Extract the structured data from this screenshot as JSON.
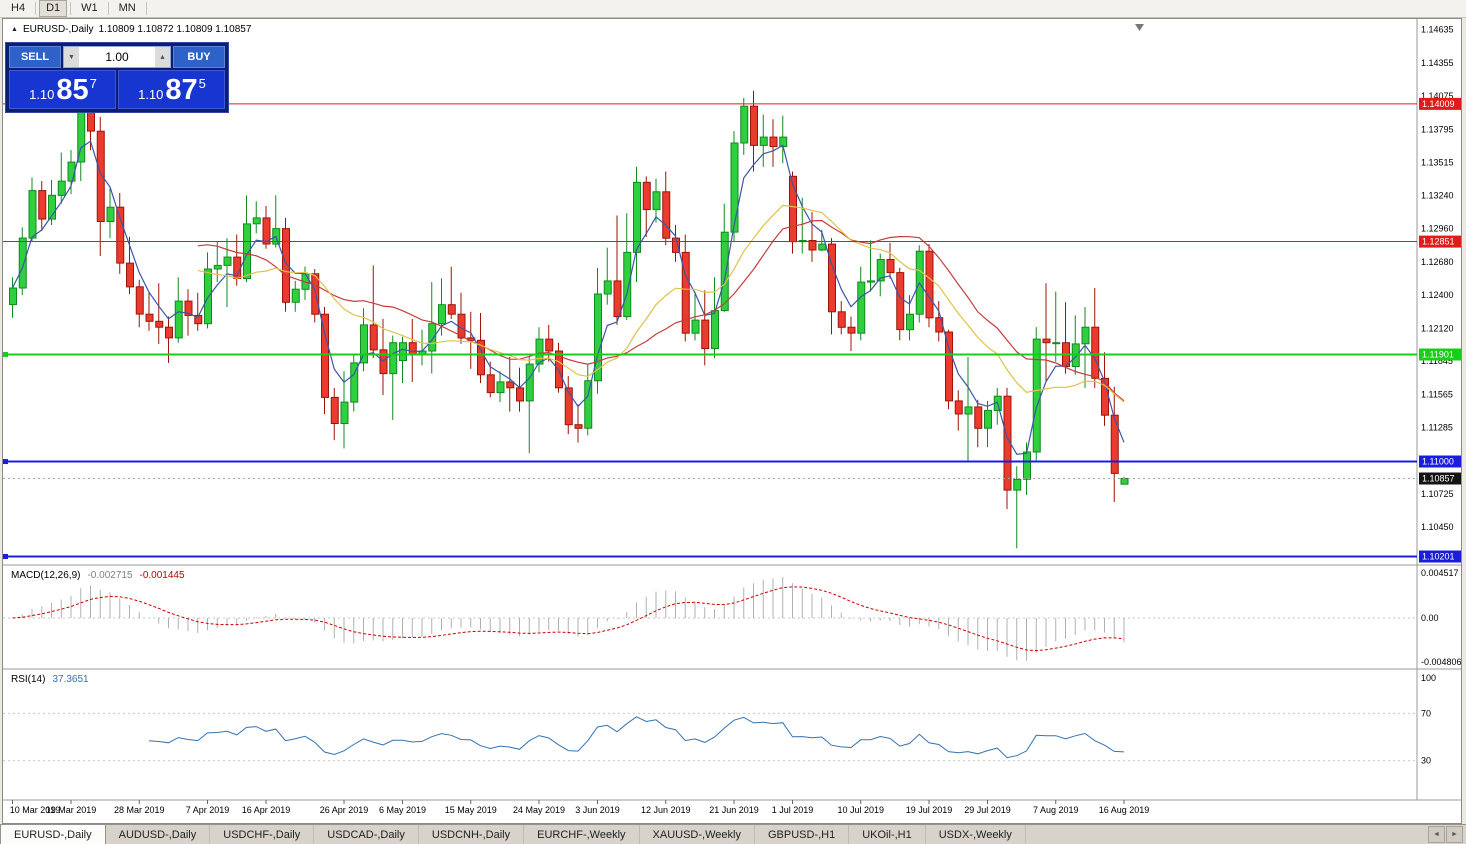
{
  "toolbar": {
    "timeframes": [
      {
        "label": "H4",
        "active": false
      },
      {
        "label": "D1",
        "active": true
      },
      {
        "label": "W1",
        "active": false
      },
      {
        "label": "MN",
        "active": false
      }
    ]
  },
  "icons": {
    "symbol_marker": "▲",
    "spin_down": "▼",
    "spin_up": "▲",
    "tab_left": "◄",
    "tab_right": "►"
  },
  "quote_line": {
    "symbol": "EURUSD-,Daily",
    "values": "1.10809 1.10872 1.10809 1.10857"
  },
  "trade_panel": {
    "sell_label": "SELL",
    "buy_label": "BUY",
    "volume": "1.00",
    "sell": {
      "prefix": "1.10",
      "big": "85",
      "sup": "7"
    },
    "buy": {
      "prefix": "1.10",
      "big": "87",
      "sup": "5"
    }
  },
  "chart_data": {
    "type": "candlestick",
    "symbol": "EURUSD",
    "timeframe": "Daily",
    "ohlc_current": {
      "open": "1.10809",
      "high": "1.10872",
      "low": "1.10809",
      "close": "1.10857"
    },
    "price_range": {
      "top": 1.1469,
      "bottom": 1.1018
    },
    "colors": {
      "bull_fill": "#2fcf3f",
      "bull_border": "#118a1f",
      "bear_fill": "#ea3b2e",
      "bear_border": "#9c1408",
      "macd_hist": "#b0b0b0",
      "macd_signal": "#cc0000",
      "rsi_line": "#3572b0"
    },
    "y_axis_labels": [
      "1.14635",
      "1.14355",
      "1.14075",
      "1.13795",
      "1.13515",
      "1.13240",
      "1.12960",
      "1.12680",
      "1.12400",
      "1.12120",
      "1.11845",
      "1.11565",
      "1.11285",
      "1.10725",
      "1.10450"
    ],
    "hlines": [
      {
        "price": 1.14009,
        "label": "1.14009",
        "color": "#e11b1b",
        "width": 1
      },
      {
        "price": 1.12851,
        "label": "1.12851",
        "color": "#e11b1b",
        "width": 1
      },
      {
        "price": 1.11901,
        "label": "1.11901",
        "color": "#17cf17",
        "width": 2
      },
      {
        "price": 1.11,
        "label": "1.11000",
        "color": "#1c1cdc",
        "width": 2
      },
      {
        "price": 1.10201,
        "label": "1.10201",
        "color": "#1c1cdc",
        "width": 2
      }
    ],
    "current": {
      "price": 1.10857,
      "label": "1.10857",
      "badge_color": "#141414"
    },
    "moving_averages": [
      {
        "period": 4,
        "method": "ema",
        "color": "#3a56a8"
      },
      {
        "period": 20,
        "method": "sma",
        "color": "#c43d3d"
      },
      {
        "period": 20,
        "method": "wma",
        "color": "#e2c14b"
      }
    ],
    "macd": {
      "label": "MACD(12,26,9)",
      "value_main": "-0.002715",
      "value_signal": "-0.001445",
      "axis": [
        "0.004517",
        "0.00",
        "-0.004806"
      ],
      "params": {
        "fast": 12,
        "slow": 26,
        "signal": 9
      }
    },
    "rsi": {
      "label": "RSI(14)",
      "value": "37.3651",
      "period": 14,
      "axis": [
        "100",
        "70",
        "30"
      ],
      "levels": [
        70,
        30
      ]
    },
    "x_labels": [
      {
        "text": "10 Mar 2019",
        "index": 0
      },
      {
        "text": "19 Mar 2019",
        "index": 6
      },
      {
        "text": "28 Mar 2019",
        "index": 13
      },
      {
        "text": "7 Apr 2019",
        "index": 20
      },
      {
        "text": "16 Apr 2019",
        "index": 26
      },
      {
        "text": "26 Apr 2019",
        "index": 34
      },
      {
        "text": "6 May 2019",
        "index": 40
      },
      {
        "text": "15 May 2019",
        "index": 47
      },
      {
        "text": "24 May 2019",
        "index": 54
      },
      {
        "text": "3 Jun 2019",
        "index": 60
      },
      {
        "text": "12 Jun 2019",
        "index": 67
      },
      {
        "text": "21 Jun 2019",
        "index": 74
      },
      {
        "text": "1 Jul 2019",
        "index": 80
      },
      {
        "text": "10 Jul 2019",
        "index": 87
      },
      {
        "text": "19 Jul 2019",
        "index": 94
      },
      {
        "text": "29 Jul 2019",
        "index": 100
      },
      {
        "text": "7 Aug 2019",
        "index": 107
      },
      {
        "text": "16 Aug 2019",
        "index": 114
      }
    ],
    "candles": [
      [
        1.1232,
        1.1255,
        1.1221,
        1.1246
      ],
      [
        1.1246,
        1.1297,
        1.124,
        1.1288
      ],
      [
        1.1288,
        1.1339,
        1.1285,
        1.1328
      ],
      [
        1.1328,
        1.1336,
        1.1294,
        1.1304
      ],
      [
        1.1304,
        1.1337,
        1.1299,
        1.1324
      ],
      [
        1.1324,
        1.136,
        1.1317,
        1.1336
      ],
      [
        1.1336,
        1.1362,
        1.1325,
        1.1352
      ],
      [
        1.1352,
        1.1448,
        1.1336,
        1.1412
      ],
      [
        1.1412,
        1.1438,
        1.1362,
        1.1378
      ],
      [
        1.1378,
        1.139,
        1.1273,
        1.1302
      ],
      [
        1.1302,
        1.133,
        1.1288,
        1.1314
      ],
      [
        1.1314,
        1.1326,
        1.1258,
        1.1267
      ],
      [
        1.1267,
        1.1289,
        1.1241,
        1.1247
      ],
      [
        1.1247,
        1.1253,
        1.1213,
        1.1224
      ],
      [
        1.1224,
        1.1242,
        1.121,
        1.1218
      ],
      [
        1.1218,
        1.125,
        1.1199,
        1.1213
      ],
      [
        1.1213,
        1.1222,
        1.1183,
        1.1204
      ],
      [
        1.1204,
        1.1255,
        1.12,
        1.1235
      ],
      [
        1.1235,
        1.1245,
        1.1206,
        1.1223
      ],
      [
        1.1223,
        1.1242,
        1.121,
        1.1216
      ],
      [
        1.1216,
        1.1276,
        1.1212,
        1.1262
      ],
      [
        1.1262,
        1.1285,
        1.1251,
        1.1265
      ],
      [
        1.1265,
        1.1288,
        1.123,
        1.1272
      ],
      [
        1.1272,
        1.1291,
        1.1248,
        1.1254
      ],
      [
        1.1254,
        1.1324,
        1.1251,
        1.13
      ],
      [
        1.13,
        1.1319,
        1.1292,
        1.1305
      ],
      [
        1.1305,
        1.1315,
        1.1279,
        1.1283
      ],
      [
        1.1283,
        1.1324,
        1.128,
        1.1296
      ],
      [
        1.1296,
        1.1305,
        1.1226,
        1.1234
      ],
      [
        1.1234,
        1.1252,
        1.1226,
        1.1245
      ],
      [
        1.1245,
        1.1264,
        1.1236,
        1.1258
      ],
      [
        1.1258,
        1.1262,
        1.1217,
        1.1224
      ],
      [
        1.1224,
        1.123,
        1.114,
        1.1154
      ],
      [
        1.1154,
        1.1162,
        1.1118,
        1.1132
      ],
      [
        1.1132,
        1.1176,
        1.1111,
        1.115
      ],
      [
        1.115,
        1.119,
        1.1142,
        1.1183
      ],
      [
        1.1183,
        1.1229,
        1.1176,
        1.1215
      ],
      [
        1.1215,
        1.1265,
        1.1187,
        1.1194
      ],
      [
        1.1194,
        1.122,
        1.1156,
        1.1174
      ],
      [
        1.1174,
        1.1206,
        1.1135,
        1.12
      ],
      [
        1.1185,
        1.1205,
        1.1166,
        1.12
      ],
      [
        1.12,
        1.122,
        1.1167,
        1.119
      ],
      [
        1.119,
        1.1211,
        1.1181,
        1.1193
      ],
      [
        1.1193,
        1.1251,
        1.1174,
        1.1216
      ],
      [
        1.1216,
        1.1254,
        1.1206,
        1.1232
      ],
      [
        1.1232,
        1.1264,
        1.122,
        1.1224
      ],
      [
        1.1224,
        1.1242,
        1.1199,
        1.1204
      ],
      [
        1.1204,
        1.1226,
        1.1178,
        1.1202
      ],
      [
        1.1202,
        1.1225,
        1.1166,
        1.1173
      ],
      [
        1.1173,
        1.1184,
        1.1154,
        1.1158
      ],
      [
        1.1158,
        1.1176,
        1.115,
        1.1167
      ],
      [
        1.1167,
        1.1188,
        1.1142,
        1.1162
      ],
      [
        1.1162,
        1.1179,
        1.1142,
        1.1151
      ],
      [
        1.1151,
        1.1188,
        1.1107,
        1.1182
      ],
      [
        1.1182,
        1.1213,
        1.1175,
        1.1203
      ],
      [
        1.1203,
        1.1215,
        1.1184,
        1.1193
      ],
      [
        1.1193,
        1.12,
        1.1158,
        1.1162
      ],
      [
        1.1162,
        1.1172,
        1.1123,
        1.1131
      ],
      [
        1.1131,
        1.1148,
        1.1116,
        1.1128
      ],
      [
        1.1128,
        1.1182,
        1.1122,
        1.1168
      ],
      [
        1.1168,
        1.1263,
        1.1157,
        1.1241
      ],
      [
        1.1241,
        1.128,
        1.1232,
        1.1252
      ],
      [
        1.1252,
        1.1307,
        1.1215,
        1.1222
      ],
      [
        1.1222,
        1.1309,
        1.1219,
        1.1276
      ],
      [
        1.1276,
        1.1348,
        1.1251,
        1.1335
      ],
      [
        1.1335,
        1.134,
        1.1289,
        1.1312
      ],
      [
        1.1312,
        1.1338,
        1.1301,
        1.1327
      ],
      [
        1.1327,
        1.1344,
        1.1282,
        1.1288
      ],
      [
        1.1288,
        1.1299,
        1.1268,
        1.1276
      ],
      [
        1.1276,
        1.1291,
        1.1201,
        1.1208
      ],
      [
        1.1208,
        1.1243,
        1.1202,
        1.1219
      ],
      [
        1.1219,
        1.1244,
        1.1181,
        1.1195
      ],
      [
        1.1195,
        1.1255,
        1.1187,
        1.1227
      ],
      [
        1.1227,
        1.1317,
        1.1226,
        1.1293
      ],
      [
        1.1293,
        1.1378,
        1.1285,
        1.1368
      ],
      [
        1.1368,
        1.1406,
        1.1358,
        1.1399
      ],
      [
        1.1399,
        1.1412,
        1.1344,
        1.1366
      ],
      [
        1.1366,
        1.1392,
        1.1348,
        1.1373
      ],
      [
        1.1373,
        1.1388,
        1.1348,
        1.1365
      ],
      [
        1.1365,
        1.1391,
        1.1351,
        1.1373
      ],
      [
        1.134,
        1.1344,
        1.1275,
        1.1285
      ],
      [
        1.1285,
        1.1322,
        1.1275,
        1.1286
      ],
      [
        1.1286,
        1.131,
        1.1268,
        1.1278
      ],
      [
        1.1278,
        1.1295,
        1.1277,
        1.1283
      ],
      [
        1.1283,
        1.1288,
        1.1207,
        1.1226
      ],
      [
        1.1226,
        1.1235,
        1.1207,
        1.1213
      ],
      [
        1.1213,
        1.1222,
        1.1193,
        1.1208
      ],
      [
        1.1208,
        1.1264,
        1.1202,
        1.1251
      ],
      [
        1.1251,
        1.1286,
        1.1243,
        1.1252
      ],
      [
        1.1252,
        1.1275,
        1.1239,
        1.127
      ],
      [
        1.127,
        1.1284,
        1.1254,
        1.1259
      ],
      [
        1.1259,
        1.1263,
        1.1202,
        1.1211
      ],
      [
        1.1211,
        1.124,
        1.1202,
        1.1224
      ],
      [
        1.1224,
        1.1282,
        1.1217,
        1.1277
      ],
      [
        1.1277,
        1.1283,
        1.1213,
        1.1221
      ],
      [
        1.1221,
        1.1235,
        1.1201,
        1.1209
      ],
      [
        1.1209,
        1.1211,
        1.1144,
        1.1151
      ],
      [
        1.1151,
        1.116,
        1.1126,
        1.114
      ],
      [
        1.114,
        1.1188,
        1.1101,
        1.1146
      ],
      [
        1.1146,
        1.1152,
        1.1112,
        1.1128
      ],
      [
        1.1128,
        1.1151,
        1.1112,
        1.1143
      ],
      [
        1.1143,
        1.1162,
        1.1131,
        1.1155
      ],
      [
        1.1155,
        1.1162,
        1.106,
        1.1076
      ],
      [
        1.1076,
        1.1096,
        1.1027,
        1.1085
      ],
      [
        1.1085,
        1.1116,
        1.1072,
        1.1108
      ],
      [
        1.1108,
        1.1213,
        1.1101,
        1.1203
      ],
      [
        1.1203,
        1.125,
        1.1167,
        1.12
      ],
      [
        1.12,
        1.1243,
        1.1184,
        1.12
      ],
      [
        1.12,
        1.1234,
        1.1174,
        1.118
      ],
      [
        1.118,
        1.1223,
        1.1173,
        1.1199
      ],
      [
        1.1199,
        1.123,
        1.1162,
        1.1213
      ],
      [
        1.1213,
        1.1246,
        1.1162,
        1.117
      ],
      [
        1.117,
        1.1192,
        1.113,
        1.1139
      ],
      [
        1.1139,
        1.1163,
        1.1066,
        1.109
      ],
      [
        1.10809,
        1.10872,
        1.10809,
        1.10857
      ]
    ]
  },
  "tabs": {
    "items": [
      {
        "label": "EURUSD-,Daily",
        "active": true
      },
      {
        "label": "AUDUSD-,Daily",
        "active": false
      },
      {
        "label": "USDCHF-,Daily",
        "active": false
      },
      {
        "label": "USDCAD-,Daily",
        "active": false
      },
      {
        "label": "USDCNH-,Daily",
        "active": false
      },
      {
        "label": "EURCHF-,Weekly",
        "active": false
      },
      {
        "label": "XAUUSD-,Weekly",
        "active": false
      },
      {
        "label": "GBPUSD-,H1",
        "active": false
      },
      {
        "label": "UKOil-,H1",
        "active": false
      },
      {
        "label": "USDX-,Weekly",
        "active": false
      }
    ]
  }
}
